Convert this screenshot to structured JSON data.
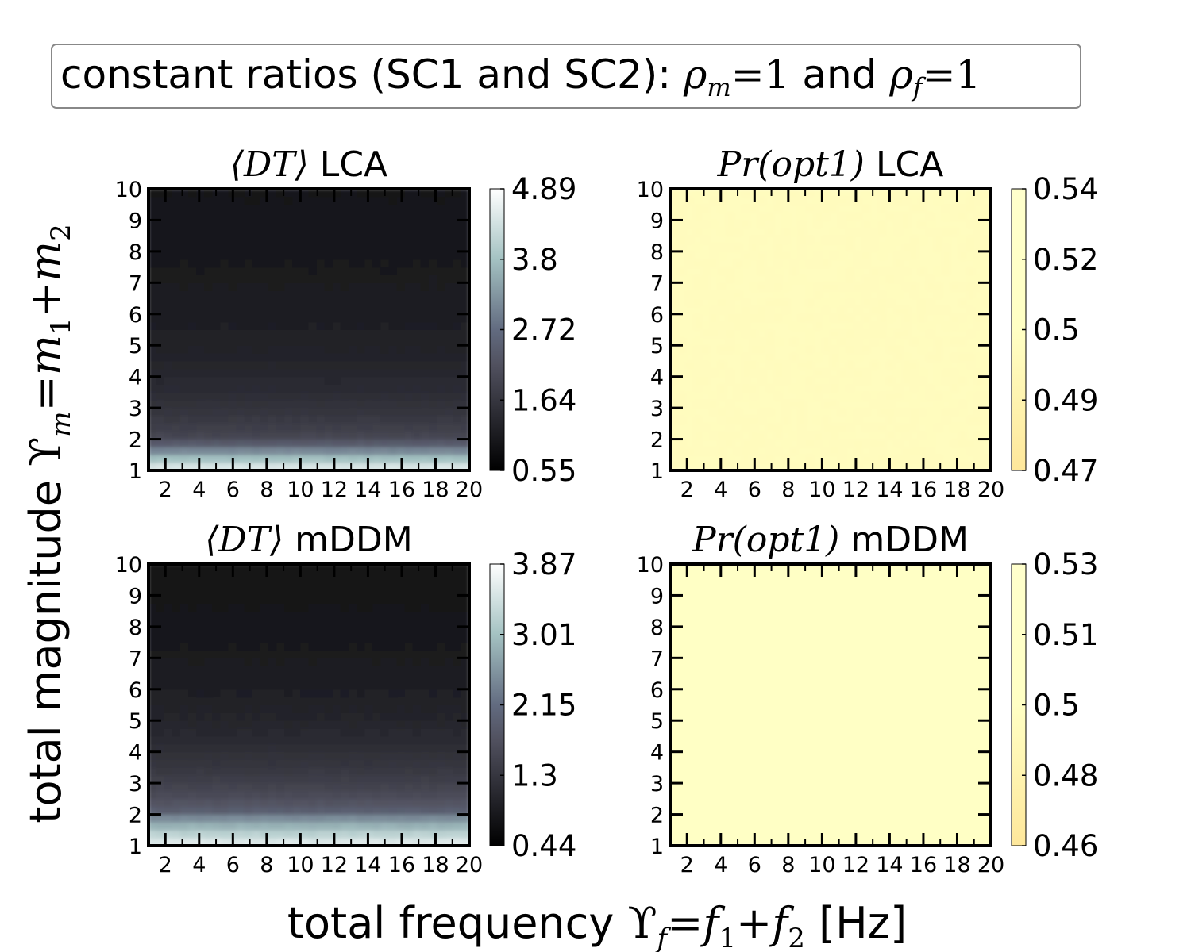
{
  "figure": {
    "banner": {
      "text_prefix": "constant ratios (SC1 and SC2): ",
      "rho_m_symbol": "ρ",
      "rho_m_sub": "m",
      "rho_m_rhs": "=1",
      "and_text": " and ",
      "rho_f_symbol": "ρ",
      "rho_f_sub": "f",
      "rho_f_rhs": "=1"
    },
    "ylabel": {
      "prefix": "total magnitude ",
      "upsilon": "ϒ",
      "sub": "m",
      "eq": "=",
      "m": "m",
      "one": "1",
      "plus": "+",
      "two": "2"
    },
    "xlabel": {
      "prefix": "total frequency ",
      "upsilon": "ϒ",
      "sub": "f",
      "eq": "=",
      "f": "f",
      "one": "1",
      "plus": "+",
      "two": "2",
      "unit": " [Hz]"
    }
  },
  "chart_data": [
    {
      "type": "heatmap",
      "title_math": "⟨DT⟩",
      "title_text": " LCA",
      "colormap": "bone",
      "x_range": [
        1,
        20
      ],
      "y_range": [
        1,
        10
      ],
      "x_ticks": [
        "2",
        "4",
        "6",
        "8",
        "10",
        "12",
        "14",
        "16",
        "18",
        "20"
      ],
      "y_ticks": [
        "1",
        "2",
        "3",
        "4",
        "5",
        "6",
        "7",
        "8",
        "9",
        "10"
      ],
      "colorbar_ticks": [
        "0.55",
        "1.64",
        "2.72",
        "3.8",
        "4.89"
      ],
      "clim": [
        0.55,
        4.89
      ],
      "trend": "mean decision time decreases with total magnitude; highest (~4.5) at magnitude 1, ~2.0 at 2, ~1.6 at 3, ~1.2 at 4-5, ~0.8 at 10; nearly constant in frequency"
    },
    {
      "type": "heatmap",
      "title_math": "Pr(opt1)",
      "title_text": " LCA",
      "colormap": "YlOrRd",
      "x_range": [
        1,
        20
      ],
      "y_range": [
        1,
        10
      ],
      "x_ticks": [
        "2",
        "4",
        "6",
        "8",
        "10",
        "12",
        "14",
        "16",
        "18",
        "20"
      ],
      "y_ticks": [
        "1",
        "2",
        "3",
        "4",
        "5",
        "6",
        "7",
        "8",
        "9",
        "10"
      ],
      "colorbar_ticks": [
        "0.47",
        "0.49",
        "0.5",
        "0.52",
        "0.54"
      ],
      "clim": [
        0.47,
        0.54
      ],
      "trend": "approximately uniform at 0.5"
    },
    {
      "type": "heatmap",
      "title_math": "⟨DT⟩",
      "title_text": " mDDM",
      "colormap": "bone",
      "x_range": [
        1,
        20
      ],
      "y_range": [
        1,
        10
      ],
      "x_ticks": [
        "2",
        "4",
        "6",
        "8",
        "10",
        "12",
        "14",
        "16",
        "18",
        "20"
      ],
      "y_ticks": [
        "1",
        "2",
        "3",
        "4",
        "5",
        "6",
        "7",
        "8",
        "9",
        "10"
      ],
      "colorbar_ticks": [
        "0.44",
        "1.3",
        "2.15",
        "3.01",
        "3.87"
      ],
      "clim": [
        0.44,
        3.87
      ],
      "trend": "mean decision time decreases with total magnitude; highest (~3.6) at magnitude 1, ~2.3 at 2, ~1.5 at 3-4, ~0.6 at 10; nearly constant in frequency"
    },
    {
      "type": "heatmap",
      "title_math": "Pr(opt1)",
      "title_text": " mDDM",
      "colormap": "YlOrRd",
      "x_range": [
        1,
        20
      ],
      "y_range": [
        1,
        10
      ],
      "x_ticks": [
        "2",
        "4",
        "6",
        "8",
        "10",
        "12",
        "14",
        "16",
        "18",
        "20"
      ],
      "y_ticks": [
        "1",
        "2",
        "3",
        "4",
        "5",
        "6",
        "7",
        "8",
        "9",
        "10"
      ],
      "colorbar_ticks": [
        "0.46",
        "0.48",
        "0.5",
        "0.51",
        "0.53"
      ],
      "clim": [
        0.46,
        0.53
      ],
      "trend": "approximately uniform at 0.5"
    }
  ]
}
